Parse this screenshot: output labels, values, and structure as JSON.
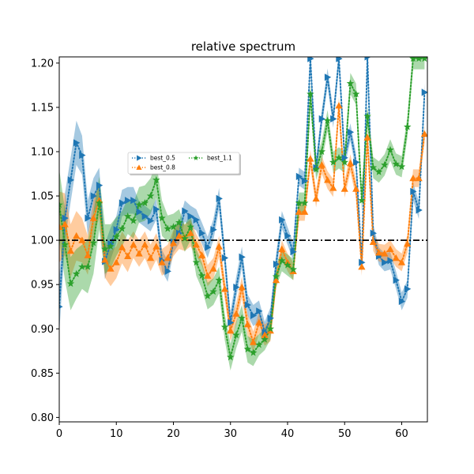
{
  "chart_data": {
    "type": "line",
    "title": "relative spectrum",
    "xlabel": "",
    "ylabel": "",
    "xlim": [
      0,
      64.5
    ],
    "ylim": [
      0.795,
      1.207
    ],
    "xticks": [
      0,
      10,
      20,
      30,
      40,
      50,
      60
    ],
    "yticks": [
      0.8,
      0.85,
      0.9,
      0.95,
      1.0,
      1.05,
      1.1,
      1.15,
      1.2
    ],
    "ytick_labels": [
      "0.80",
      "0.85",
      "0.90",
      "0.95",
      "1.00",
      "1.05",
      "1.10",
      "1.15",
      "1.20"
    ],
    "grid": false,
    "legend_placement": "upper-left-center",
    "reference_line": {
      "y": 1.0,
      "style": "dash-dot",
      "color": "#000000"
    },
    "series": [
      {
        "name": "best_0.5",
        "color": "#1f77b4",
        "marker": "triangle-right",
        "x": [
          0,
          1,
          2,
          3,
          4,
          5,
          6,
          7,
          8,
          9,
          10,
          11,
          12,
          13,
          14,
          15,
          16,
          17,
          18,
          19,
          20,
          21,
          22,
          23,
          24,
          25,
          26,
          27,
          28,
          29,
          30,
          31,
          32,
          33,
          34,
          35,
          36,
          37,
          38,
          39,
          40,
          41,
          42,
          43,
          44,
          45,
          46,
          47,
          48,
          49,
          50,
          51,
          52,
          53,
          54,
          55,
          56,
          57,
          58,
          59,
          60,
          61,
          62,
          63,
          64
        ],
        "values": [
          0.925,
          1.025,
          1.068,
          1.11,
          1.096,
          1.025,
          1.05,
          1.062,
          0.976,
          0.996,
          1.012,
          1.042,
          1.045,
          1.045,
          1.032,
          1.027,
          1.022,
          1.035,
          0.977,
          0.965,
          0.998,
          1.008,
          1.033,
          1.027,
          1.023,
          1.008,
          0.992,
          1.012,
          1.047,
          0.98,
          0.907,
          0.947,
          0.981,
          0.927,
          0.915,
          0.92,
          0.896,
          0.912,
          0.973,
          1.023,
          1.005,
          0.987,
          1.072,
          1.067,
          1.205,
          1.082,
          1.137,
          1.184,
          1.137,
          1.205,
          1.093,
          1.122,
          1.088,
          0.975,
          1.207,
          1.008,
          0.982,
          0.975,
          0.977,
          0.955,
          0.931,
          0.945,
          1.055,
          1.034,
          1.167
        ],
        "band_halfwidth": [
          0.03,
          0.028,
          0.025,
          0.025,
          0.022,
          0.02,
          0.02,
          0.02,
          0.02,
          0.018,
          0.015,
          0.015,
          0.015,
          0.015,
          0.012,
          0.012,
          0.012,
          0.012,
          0.012,
          0.012,
          0.012,
          0.012,
          0.012,
          0.012,
          0.012,
          0.012,
          0.012,
          0.012,
          0.012,
          0.012,
          0.012,
          0.012,
          0.012,
          0.012,
          0.012,
          0.012,
          0.012,
          0.012,
          0.012,
          0.01,
          0.01,
          0.01,
          0.01,
          0.01,
          0.01,
          0.01,
          0.01,
          0.01,
          0.01,
          0.01,
          0.01,
          0.01,
          0.01,
          0.01,
          0.01,
          0.01,
          0.01,
          0.01,
          0.01,
          0.01,
          0.01,
          0.01,
          0.01,
          0.01,
          0.01
        ]
      },
      {
        "name": "best_0.8",
        "color": "#ff7f0e",
        "marker": "triangle-up",
        "x": [
          0,
          1,
          2,
          3,
          4,
          5,
          6,
          7,
          8,
          9,
          10,
          11,
          12,
          13,
          14,
          15,
          16,
          17,
          18,
          19,
          20,
          21,
          22,
          23,
          24,
          25,
          26,
          27,
          28,
          29,
          30,
          31,
          32,
          33,
          34,
          35,
          36,
          37,
          38,
          39,
          40,
          41,
          42,
          43,
          44,
          45,
          46,
          47,
          48,
          49,
          50,
          51,
          52,
          53,
          54,
          55,
          56,
          57,
          58,
          59,
          60,
          61,
          62,
          63,
          64
        ],
        "values": [
          1.015,
          1.018,
          0.988,
          1.005,
          1.0,
          0.983,
          1.025,
          1.045,
          0.978,
          0.968,
          0.975,
          0.992,
          0.982,
          0.995,
          0.985,
          0.995,
          0.98,
          0.993,
          0.975,
          0.98,
          0.997,
          1.005,
          1.003,
          1.008,
          0.995,
          0.983,
          0.96,
          0.968,
          0.993,
          0.945,
          0.898,
          0.917,
          0.947,
          0.905,
          0.885,
          0.907,
          0.893,
          0.898,
          0.955,
          0.99,
          0.975,
          0.965,
          1.032,
          1.032,
          1.092,
          1.047,
          1.085,
          1.068,
          1.059,
          1.152,
          1.058,
          1.087,
          1.058,
          0.97,
          1.116,
          0.998,
          0.986,
          0.985,
          0.99,
          0.98,
          0.975,
          0.996,
          1.07,
          1.07,
          1.12
        ],
        "band_halfwidth": [
          0.04,
          0.035,
          0.03,
          0.028,
          0.025,
          0.022,
          0.02,
          0.02,
          0.02,
          0.02,
          0.018,
          0.018,
          0.018,
          0.015,
          0.015,
          0.015,
          0.015,
          0.015,
          0.015,
          0.015,
          0.015,
          0.015,
          0.015,
          0.015,
          0.012,
          0.012,
          0.012,
          0.012,
          0.012,
          0.012,
          0.012,
          0.012,
          0.012,
          0.012,
          0.012,
          0.012,
          0.012,
          0.012,
          0.01,
          0.01,
          0.01,
          0.01,
          0.01,
          0.01,
          0.01,
          0.01,
          0.01,
          0.01,
          0.01,
          0.01,
          0.01,
          0.01,
          0.01,
          0.01,
          0.01,
          0.01,
          0.01,
          0.01,
          0.01,
          0.01,
          0.01,
          0.01,
          0.01,
          0.01,
          0.01
        ]
      },
      {
        "name": "best_1.1",
        "color": "#2ca02c",
        "marker": "star",
        "x": [
          0,
          1,
          2,
          3,
          4,
          5,
          6,
          7,
          8,
          9,
          10,
          11,
          12,
          13,
          14,
          15,
          16,
          17,
          18,
          19,
          20,
          21,
          22,
          23,
          24,
          25,
          26,
          27,
          28,
          29,
          30,
          31,
          32,
          33,
          34,
          35,
          36,
          37,
          38,
          39,
          40,
          41,
          42,
          43,
          44,
          45,
          46,
          47,
          48,
          49,
          50,
          51,
          52,
          53,
          54,
          55,
          56,
          57,
          58,
          59,
          60,
          61,
          62,
          63,
          64
        ],
        "values": [
          1.04,
          0.995,
          0.951,
          0.962,
          0.97,
          0.97,
          0.997,
          1.042,
          0.99,
          0.993,
          1.004,
          1.013,
          1.027,
          1.022,
          1.04,
          1.042,
          1.05,
          1.068,
          1.025,
          1.013,
          1.015,
          1.02,
          1.002,
          1.015,
          0.975,
          0.96,
          0.937,
          0.942,
          0.955,
          0.902,
          0.868,
          0.893,
          0.912,
          0.877,
          0.873,
          0.882,
          0.888,
          0.9,
          0.959,
          0.977,
          0.972,
          0.967,
          1.042,
          1.042,
          1.165,
          1.08,
          1.1,
          1.135,
          1.088,
          1.093,
          1.088,
          1.177,
          1.165,
          1.045,
          1.14,
          1.082,
          1.077,
          1.085,
          1.102,
          1.086,
          1.083,
          1.128,
          1.205,
          1.205,
          1.205
        ],
        "band_halfwidth": [
          0.04,
          0.04,
          0.03,
          0.028,
          0.025,
          0.03,
          0.035,
          0.03,
          0.028,
          0.025,
          0.022,
          0.02,
          0.02,
          0.02,
          0.02,
          0.02,
          0.02,
          0.02,
          0.02,
          0.015,
          0.015,
          0.015,
          0.015,
          0.015,
          0.015,
          0.015,
          0.015,
          0.015,
          0.015,
          0.015,
          0.015,
          0.015,
          0.015,
          0.015,
          0.015,
          0.012,
          0.012,
          0.012,
          0.012,
          0.012,
          0.012,
          0.012,
          0.012,
          0.012,
          0.012,
          0.012,
          0.012,
          0.012,
          0.012,
          0.012,
          0.012,
          0.012,
          0.012,
          0.012,
          0.012,
          0.012,
          0.012,
          0.012,
          0.012,
          0.012,
          0.012,
          0.012,
          0.012,
          0.012,
          0.012
        ]
      }
    ]
  }
}
